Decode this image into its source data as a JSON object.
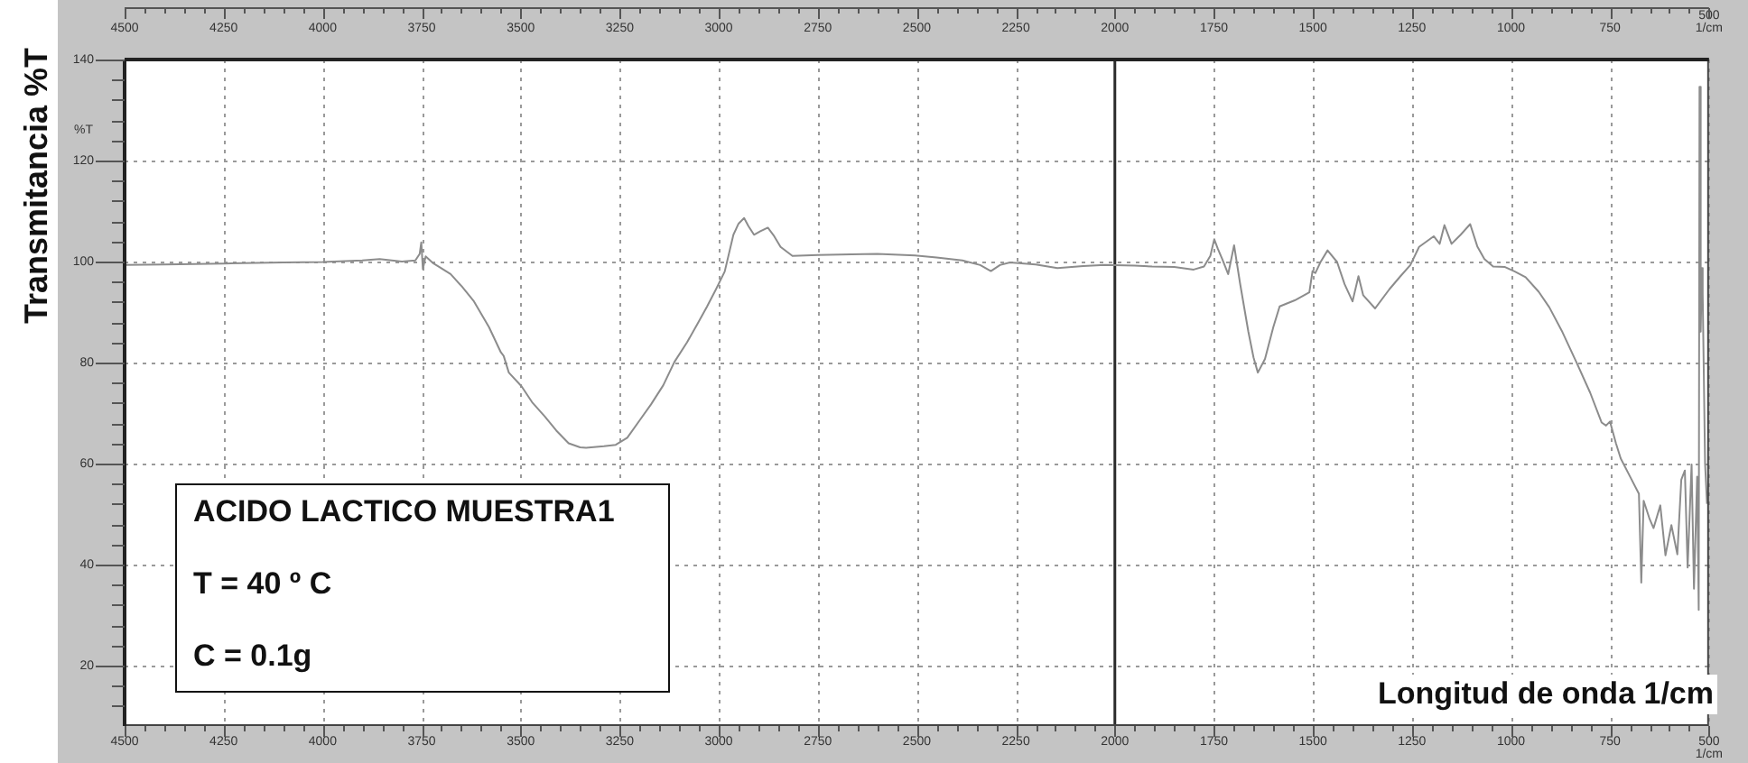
{
  "chart_data": {
    "type": "line",
    "title": "ACIDO LACTICO MUESTRA1",
    "xlabel": "Longitud de onda 1/cm",
    "ylabel": "Transmitancia %T",
    "annotations": [
      "T = 40 º C",
      "C = 0.1g",
      "%T"
    ],
    "color": "#8c8c8c",
    "marker": "none",
    "grid": true,
    "ref_lines": [
      {
        "axis": "x",
        "value": 2000,
        "color": "#2b2b2b"
      }
    ],
    "xlim": [
      4500,
      500
    ],
    "ylim": [
      8,
      140
    ],
    "x2lim": [
      4500,
      500
    ],
    "xticks": [
      4500,
      {
        "value": 4450,
        "label": null
      },
      {
        "value": 4400,
        "label": null
      },
      {
        "value": 4350,
        "label": null
      },
      {
        "value": 4300,
        "label": null
      },
      4250,
      {
        "value": 4200,
        "label": null
      },
      {
        "value": 4150,
        "label": null
      },
      {
        "value": 4100,
        "label": null
      },
      {
        "value": 4050,
        "label": null
      },
      4000,
      {
        "value": 3950,
        "label": null
      },
      {
        "value": 3900,
        "label": null
      },
      {
        "value": 3850,
        "label": null
      },
      {
        "value": 3800,
        "label": null
      },
      3750,
      {
        "value": 3700,
        "label": null
      },
      {
        "value": 3650,
        "label": null
      },
      {
        "value": 3600,
        "label": null
      },
      {
        "value": 3550,
        "label": null
      },
      3500,
      {
        "value": 3450,
        "label": null
      },
      {
        "value": 3400,
        "label": null
      },
      {
        "value": 3350,
        "label": null
      },
      {
        "value": 3300,
        "label": null
      },
      3250,
      {
        "value": 3200,
        "label": null
      },
      {
        "value": 3150,
        "label": null
      },
      {
        "value": 3100,
        "label": null
      },
      {
        "value": 3050,
        "label": null
      },
      3000,
      {
        "value": 2950,
        "label": null
      },
      {
        "value": 2900,
        "label": null
      },
      {
        "value": 2850,
        "label": null
      },
      {
        "value": 2800,
        "label": null
      },
      2750,
      {
        "value": 2700,
        "label": null
      },
      {
        "value": 2650,
        "label": null
      },
      {
        "value": 2600,
        "label": null
      },
      {
        "value": 2550,
        "label": null
      },
      2500,
      {
        "value": 2450,
        "label": null
      },
      {
        "value": 2400,
        "label": null
      },
      {
        "value": 2350,
        "label": null
      },
      {
        "value": 2300,
        "label": null
      },
      2250,
      {
        "value": 2200,
        "label": null
      },
      {
        "value": 2150,
        "label": null
      },
      {
        "value": 2100,
        "label": null
      },
      {
        "value": 2050,
        "label": null
      },
      2000,
      {
        "value": 1950,
        "label": null
      },
      {
        "value": 1900,
        "label": null
      },
      {
        "value": 1850,
        "label": null
      },
      {
        "value": 1800,
        "label": null
      },
      1750,
      {
        "value": 1700,
        "label": null
      },
      {
        "value": 1650,
        "label": null
      },
      {
        "value": 1600,
        "label": null
      },
      {
        "value": 1550,
        "label": null
      },
      1500,
      {
        "value": 1450,
        "label": null
      },
      {
        "value": 1400,
        "label": null
      },
      {
        "value": 1350,
        "label": null
      },
      {
        "value": 1300,
        "label": null
      },
      1250,
      {
        "value": 1200,
        "label": null
      },
      {
        "value": 1150,
        "label": null
      },
      {
        "value": 1100,
        "label": null
      },
      {
        "value": 1050,
        "label": null
      },
      1000,
      {
        "value": 950,
        "label": null
      },
      {
        "value": 900,
        "label": null
      },
      {
        "value": 850,
        "label": null
      },
      {
        "value": 800,
        "label": null
      },
      750,
      {
        "value": 700,
        "label": null
      },
      {
        "value": 650,
        "label": null
      },
      {
        "value": 600,
        "label": null
      },
      {
        "value": 550,
        "label": null
      },
      {
        "value": 500,
        "label": "500\n1/cm"
      }
    ],
    "x2ticks": [
      4500,
      {
        "value": 4450,
        "label": null
      },
      {
        "value": 4400,
        "label": null
      },
      {
        "value": 4350,
        "label": null
      },
      {
        "value": 4300,
        "label": null
      },
      4250,
      {
        "value": 4200,
        "label": null
      },
      {
        "value": 4150,
        "label": null
      },
      {
        "value": 4100,
        "label": null
      },
      {
        "value": 4050,
        "label": null
      },
      4000,
      {
        "value": 3950,
        "label": null
      },
      {
        "value": 3900,
        "label": null
      },
      {
        "value": 3850,
        "label": null
      },
      {
        "value": 3800,
        "label": null
      },
      3750,
      {
        "value": 3700,
        "label": null
      },
      {
        "value": 3650,
        "label": null
      },
      {
        "value": 3600,
        "label": null
      },
      {
        "value": 3550,
        "label": null
      },
      3500,
      {
        "value": 3450,
        "label": null
      },
      {
        "value": 3400,
        "label": null
      },
      {
        "value": 3350,
        "label": null
      },
      {
        "value": 3300,
        "label": null
      },
      3250,
      {
        "value": 3200,
        "label": null
      },
      {
        "value": 3150,
        "label": null
      },
      {
        "value": 3100,
        "label": null
      },
      {
        "value": 3050,
        "label": null
      },
      3000,
      {
        "value": 2950,
        "label": null
      },
      {
        "value": 2900,
        "label": null
      },
      {
        "value": 2850,
        "label": null
      },
      {
        "value": 2800,
        "label": null
      },
      2750,
      {
        "value": 2700,
        "label": null
      },
      {
        "value": 2650,
        "label": null
      },
      {
        "value": 2600,
        "label": null
      },
      {
        "value": 2550,
        "label": null
      },
      2500,
      {
        "value": 2450,
        "label": null
      },
      {
        "value": 2400,
        "label": null
      },
      {
        "value": 2350,
        "label": null
      },
      {
        "value": 2300,
        "label": null
      },
      2250,
      {
        "value": 2200,
        "label": null
      },
      {
        "value": 2150,
        "label": null
      },
      {
        "value": 2100,
        "label": null
      },
      {
        "value": 2050,
        "label": null
      },
      2000,
      {
        "value": 1950,
        "label": null
      },
      {
        "value": 1900,
        "label": null
      },
      {
        "value": 1850,
        "label": null
      },
      {
        "value": 1800,
        "label": null
      },
      1750,
      {
        "value": 1700,
        "label": null
      },
      {
        "value": 1650,
        "label": null
      },
      {
        "value": 1600,
        "label": null
      },
      {
        "value": 1550,
        "label": null
      },
      1500,
      {
        "value": 1450,
        "label": null
      },
      {
        "value": 1400,
        "label": null
      },
      {
        "value": 1350,
        "label": null
      },
      {
        "value": 1300,
        "label": null
      },
      1250,
      {
        "value": 1200,
        "label": null
      },
      {
        "value": 1150,
        "label": null
      },
      {
        "value": 1100,
        "label": null
      },
      {
        "value": 1050,
        "label": null
      },
      1000,
      {
        "value": 950,
        "label": null
      },
      {
        "value": 900,
        "label": null
      },
      {
        "value": 850,
        "label": null
      },
      {
        "value": 800,
        "label": null
      },
      750,
      {
        "value": 700,
        "label": null
      },
      {
        "value": 650,
        "label": null
      },
      {
        "value": 600,
        "label": null
      },
      {
        "value": 550,
        "label": null
      },
      {
        "value": 500,
        "label": "500\n1/cm"
      }
    ],
    "yticks": [
      {
        "value": 12,
        "label": null
      },
      {
        "value": 16,
        "label": null
      },
      20,
      {
        "value": 24,
        "label": null
      },
      {
        "value": 28,
        "label": null
      },
      {
        "value": 32,
        "label": null
      },
      {
        "value": 36,
        "label": null
      },
      40,
      {
        "value": 44,
        "label": null
      },
      {
        "value": 48,
        "label": null
      },
      {
        "value": 52,
        "label": null
      },
      {
        "value": 56,
        "label": null
      },
      60,
      {
        "value": 64,
        "label": null
      },
      {
        "value": 68,
        "label": null
      },
      {
        "value": 72,
        "label": null
      },
      {
        "value": 76,
        "label": null
      },
      80,
      {
        "value": 84,
        "label": null
      },
      {
        "value": 88,
        "label": null
      },
      {
        "value": 92,
        "label": null
      },
      {
        "value": 96,
        "label": null
      },
      100,
      {
        "value": 104,
        "label": null
      },
      {
        "value": 108,
        "label": null
      },
      {
        "value": 112,
        "label": null
      },
      {
        "value": 116,
        "label": null
      },
      120,
      {
        "value": 124,
        "label": null
      },
      {
        "value": 128,
        "label": null
      },
      {
        "value": 132,
        "label": null
      },
      {
        "value": 136,
        "label": null
      },
      140
    ],
    "x": [
      4500,
      4400,
      4250,
      4100,
      4000,
      3900,
      3856,
      3800,
      3766,
      3755,
      3751,
      3747,
      3740,
      3720,
      3707,
      3677,
      3648,
      3618,
      3580,
      3550,
      3543,
      3530,
      3498,
      3470,
      3439,
      3410,
      3379,
      3350,
      3335,
      3290,
      3260,
      3231,
      3200,
      3171,
      3140,
      3112,
      3080,
      3052,
      3030,
      3007,
      2985,
      2963,
      2950,
      2936,
      2925,
      2911,
      2895,
      2876,
      2860,
      2844,
      2814,
      2750,
      2665,
      2600,
      2504,
      2450,
      2385,
      2340,
      2313,
      2290,
      2265,
      2200,
      2145,
      2080,
      2025,
      1950,
      1906,
      1850,
      1801,
      1775,
      1759,
      1749,
      1740,
      1729,
      1714,
      1699,
      1684,
      1663,
      1650,
      1639,
      1621,
      1600,
      1584,
      1546,
      1509,
      1501,
      1494,
      1480,
      1463,
      1439,
      1420,
      1400,
      1385,
      1373,
      1343,
      1307,
      1280,
      1254,
      1232,
      1195,
      1180,
      1168,
      1150,
      1127,
      1103,
      1085,
      1067,
      1045,
      1015,
      990,
      963,
      930,
      903,
      870,
      835,
      800,
      771,
      760,
      750,
      735,
      723,
      700,
      677,
      671,
      665,
      650,
      640,
      623,
      610,
      595,
      580,
      570,
      561,
      554,
      544,
      538,
      530,
      526,
      524,
      521,
      518,
      516,
      510,
      505
    ],
    "values": [
      99.3,
      99.4,
      99.6,
      99.8,
      99.9,
      100.2,
      100.5,
      100.0,
      100.2,
      101.5,
      103.8,
      98.5,
      101,
      99.6,
      99,
      97.5,
      95,
      92.1,
      87,
      82,
      81.3,
      78,
      75.3,
      72,
      69.3,
      66.5,
      64,
      63.2,
      63.1,
      63.4,
      63.7,
      65.1,
      68.5,
      71.7,
      75.5,
      80.1,
      84,
      87.9,
      91,
      94.5,
      98,
      105.3,
      107.5,
      108.6,
      107,
      105.3,
      106,
      106.7,
      105,
      102.9,
      101.1,
      101.3,
      101.4,
      101.5,
      101.2,
      100.8,
      100.2,
      99.3,
      98.1,
      99.3,
      99.8,
      99.4,
      98.7,
      99.1,
      99.3,
      99.2,
      99,
      98.9,
      98.4,
      99,
      101.1,
      104.4,
      102.5,
      100.5,
      97.5,
      103.2,
      95.7,
      86.1,
      81,
      78,
      80.7,
      87,
      91.1,
      92.3,
      93.9,
      98.1,
      97.7,
      100,
      102.2,
      99.9,
      95.5,
      92.1,
      97.1,
      93.3,
      90.7,
      94.5,
      97,
      99.3,
      102.9,
      105,
      103.5,
      107.2,
      103.5,
      105.3,
      107.4,
      103,
      100.5,
      99,
      98.9,
      98,
      96.9,
      94,
      90.9,
      86,
      80.1,
      74,
      68.1,
      67.5,
      68.3,
      64,
      61,
      57.5,
      54,
      36.4,
      52.6,
      49,
      47.2,
      51.7,
      41.8,
      47.8,
      42,
      56.8,
      58.6,
      39.4,
      59.8,
      35.2,
      57.4,
      31,
      134.6,
      86.1,
      98.7,
      93.6,
      60,
      52
    ]
  }
}
